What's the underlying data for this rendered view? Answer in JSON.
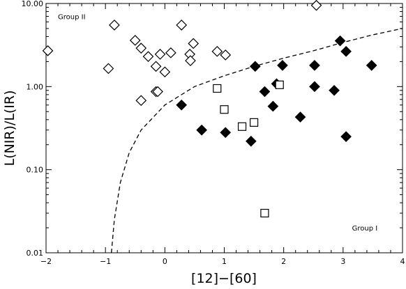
{
  "chart_data": {
    "type": "scatter",
    "title": "",
    "xlabel": "[12]−[60]",
    "ylabel": "L(NIR)/L(IR)",
    "xlim": [
      -2,
      4
    ],
    "ylim": [
      0.01,
      10
    ],
    "yscale": "log",
    "x_ticks": [
      "−2",
      "−1",
      "0",
      "1",
      "2",
      "3",
      "4"
    ],
    "x_tick_values": [
      -2,
      -1,
      0,
      1,
      2,
      3,
      4
    ],
    "y_ticks": [
      "0.01",
      "0.10",
      "1.00",
      "10.00"
    ],
    "y_tick_values": [
      0.01,
      0.1,
      1,
      10
    ],
    "grid": false,
    "annotations": [
      {
        "text": "Group II",
        "x": -1.8,
        "y": 6.5
      },
      {
        "text": "Group I",
        "x": 3.15,
        "y": 0.0185
      }
    ],
    "series": [
      {
        "marker": "open-diamond",
        "points": [
          [
            -1.97,
            2.7
          ],
          [
            -0.95,
            1.65
          ],
          [
            -0.85,
            5.5
          ],
          [
            -0.5,
            3.6
          ],
          [
            -0.4,
            2.9
          ],
          [
            -0.28,
            2.3
          ],
          [
            -0.15,
            1.75
          ],
          [
            -0.08,
            2.45
          ],
          [
            0.0,
            1.5
          ],
          [
            0.1,
            2.55
          ],
          [
            -0.4,
            0.68
          ],
          [
            -0.15,
            0.87
          ],
          [
            -0.12,
            0.87
          ],
          [
            0.28,
            5.5
          ],
          [
            0.42,
            2.45
          ],
          [
            0.48,
            3.3
          ],
          [
            0.43,
            2.05
          ],
          [
            0.88,
            2.65
          ],
          [
            1.02,
            2.4
          ],
          [
            2.55,
            9.5
          ]
        ]
      },
      {
        "marker": "filled-diamond",
        "points": [
          [
            0.28,
            0.6
          ],
          [
            0.62,
            0.3
          ],
          [
            1.02,
            0.28
          ],
          [
            1.45,
            0.22
          ],
          [
            1.52,
            1.75
          ],
          [
            1.68,
            0.87
          ],
          [
            1.82,
            0.58
          ],
          [
            1.88,
            1.08
          ],
          [
            1.98,
            1.8
          ],
          [
            2.28,
            0.43
          ],
          [
            2.52,
            1.0
          ],
          [
            2.52,
            1.8
          ],
          [
            2.85,
            0.9
          ],
          [
            2.95,
            3.55
          ],
          [
            3.05,
            2.65
          ],
          [
            3.05,
            0.25
          ],
          [
            3.48,
            1.8
          ]
        ]
      },
      {
        "marker": "open-square",
        "points": [
          [
            0.88,
            0.95
          ],
          [
            1.0,
            0.53
          ],
          [
            1.3,
            0.33
          ],
          [
            1.5,
            0.37
          ],
          [
            1.68,
            0.03
          ],
          [
            1.93,
            1.05
          ]
        ]
      },
      {
        "marker": "dashed-line",
        "points": [
          [
            -0.9,
            0.01
          ],
          [
            -0.85,
            0.025
          ],
          [
            -0.75,
            0.07
          ],
          [
            -0.6,
            0.16
          ],
          [
            -0.4,
            0.3
          ],
          [
            0.0,
            0.6
          ],
          [
            0.5,
            1.0
          ],
          [
            1.0,
            1.35
          ],
          [
            1.5,
            1.75
          ],
          [
            2.0,
            2.2
          ],
          [
            2.5,
            2.7
          ],
          [
            3.0,
            3.4
          ],
          [
            3.5,
            4.2
          ],
          [
            4.0,
            5.0
          ]
        ]
      }
    ]
  }
}
